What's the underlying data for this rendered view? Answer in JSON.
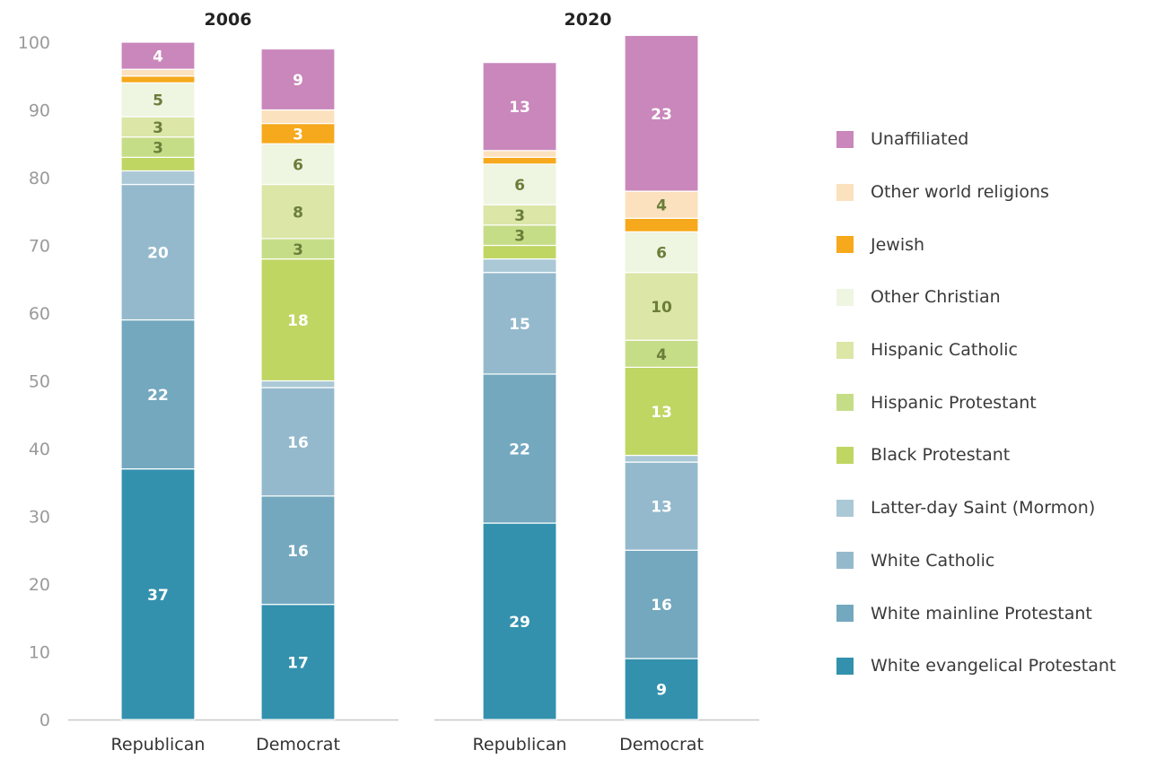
{
  "chart_data": {
    "type": "bar",
    "stacked": true,
    "ylim": [
      0,
      100
    ],
    "yticks": [
      0,
      10,
      20,
      30,
      40,
      50,
      60,
      70,
      80,
      90,
      100
    ],
    "grid": false,
    "legend_position": "right",
    "series_order": [
      "White evangelical Protestant",
      "White mainline Protestant",
      "White Catholic",
      "Latter-day Saint (Mormon)",
      "Black Protestant",
      "Hispanic Protestant",
      "Hispanic Catholic",
      "Other Christian",
      "Jewish",
      "Other world religions",
      "Unaffiliated"
    ],
    "legend": [
      {
        "name": "Unaffiliated",
        "color": "#c987bb"
      },
      {
        "name": "Other world religions",
        "color": "#fbe1bd"
      },
      {
        "name": "Jewish",
        "color": "#f6a91c"
      },
      {
        "name": "Other Christian",
        "color": "#eef5e1"
      },
      {
        "name": "Hispanic Catholic",
        "color": "#dbe6a7"
      },
      {
        "name": "Hispanic Protestant",
        "color": "#c6dd88"
      },
      {
        "name": "Black Protestant",
        "color": "#bfd663"
      },
      {
        "name": "Latter-day Saint (Mormon)",
        "color": "#abc8d6"
      },
      {
        "name": "White Catholic",
        "color": "#94b9cc"
      },
      {
        "name": "White mainline Protestant",
        "color": "#73a8bf"
      },
      {
        "name": "White evangelical Protestant",
        "color": "#3391ad"
      }
    ],
    "panels": [
      {
        "title": "2006",
        "categories": [
          "Republican",
          "Democrat"
        ],
        "bars": [
          {
            "category": "Republican",
            "values": [
              37,
              22,
              20,
              2,
              2,
              3,
              3,
              5,
              1,
              1,
              4
            ],
            "labels": [
              "37",
              "22",
              "20",
              "",
              "",
              "3",
              "3",
              "5",
              "",
              "",
              "4"
            ]
          },
          {
            "category": "Democrat",
            "values": [
              17,
              16,
              16,
              1,
              18,
              3,
              8,
              6,
              3,
              2,
              9
            ],
            "labels": [
              "17",
              "16",
              "16",
              "",
              "18",
              "3",
              "8",
              "6",
              "3",
              "",
              "9"
            ]
          }
        ]
      },
      {
        "title": "2020",
        "categories": [
          "Republican",
          "Democrat"
        ],
        "bars": [
          {
            "category": "Republican",
            "values": [
              29,
              22,
              15,
              2,
              2,
              3,
              3,
              6,
              1,
              1,
              13
            ],
            "labels": [
              "29",
              "22",
              "15",
              "",
              "",
              "3",
              "3",
              "6",
              "",
              "",
              "13"
            ]
          },
          {
            "category": "Democrat",
            "values": [
              9,
              16,
              13,
              1,
              13,
              4,
              10,
              6,
              2,
              4,
              23
            ],
            "labels": [
              "9",
              "16",
              "13",
              "",
              "13",
              "4",
              "10",
              "6",
              "",
              "4",
              "23"
            ]
          }
        ]
      }
    ]
  }
}
